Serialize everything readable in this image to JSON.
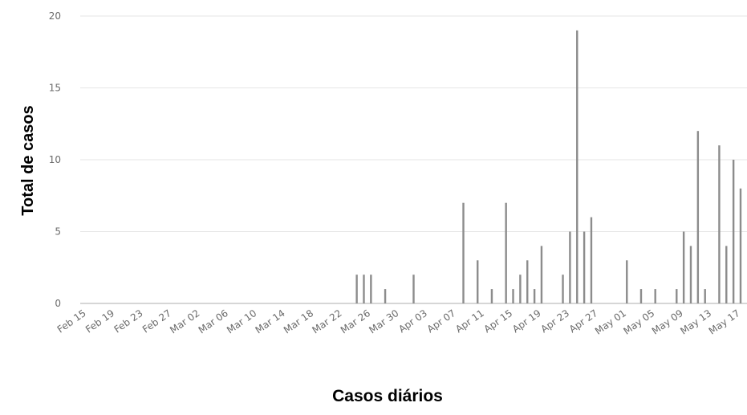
{
  "chart_data": {
    "type": "bar",
    "xlabel": "Casos diários",
    "ylabel": "Total de casos",
    "ylim": [
      0,
      20
    ],
    "yticks": [
      0,
      5,
      10,
      15,
      20
    ],
    "grid": "horizontal",
    "x_tick_labels": [
      "Feb 15",
      "Feb 19",
      "Feb 23",
      "Feb 27",
      "Mar 02",
      "Mar 06",
      "Mar 10",
      "Mar 14",
      "Mar 18",
      "Mar 22",
      "Mar 26",
      "Mar 30",
      "Apr 03",
      "Apr 07",
      "Apr 11",
      "Apr 15",
      "Apr 19",
      "Apr 23",
      "Apr 27",
      "May 01",
      "May 05",
      "May 09",
      "May 13",
      "May 17"
    ],
    "x": [
      "Mar 24",
      "Mar 25",
      "Mar 26",
      "Mar 28",
      "Apr 01",
      "Apr 08",
      "Apr 10",
      "Apr 12",
      "Apr 14",
      "Apr 15",
      "Apr 16",
      "Apr 17",
      "Apr 18",
      "Apr 19",
      "Apr 22",
      "Apr 23",
      "Apr 24",
      "Apr 25",
      "Apr 26",
      "May 01",
      "May 03",
      "May 05",
      "May 08",
      "May 09",
      "May 10",
      "May 11",
      "May 12",
      "May 14",
      "May 15",
      "May 16",
      "May 17"
    ],
    "values": [
      2,
      2,
      2,
      1,
      2,
      7,
      3,
      1,
      7,
      1,
      2,
      3,
      1,
      4,
      2,
      5,
      19,
      5,
      6,
      3,
      1,
      1,
      1,
      5,
      4,
      12,
      1,
      11,
      4,
      10,
      8
    ],
    "colors": {
      "bar": "#8c8c8c",
      "grid": "#e6e6e6",
      "axis": "#c8c8c8",
      "tick_text": "#6b6b6b"
    }
  }
}
